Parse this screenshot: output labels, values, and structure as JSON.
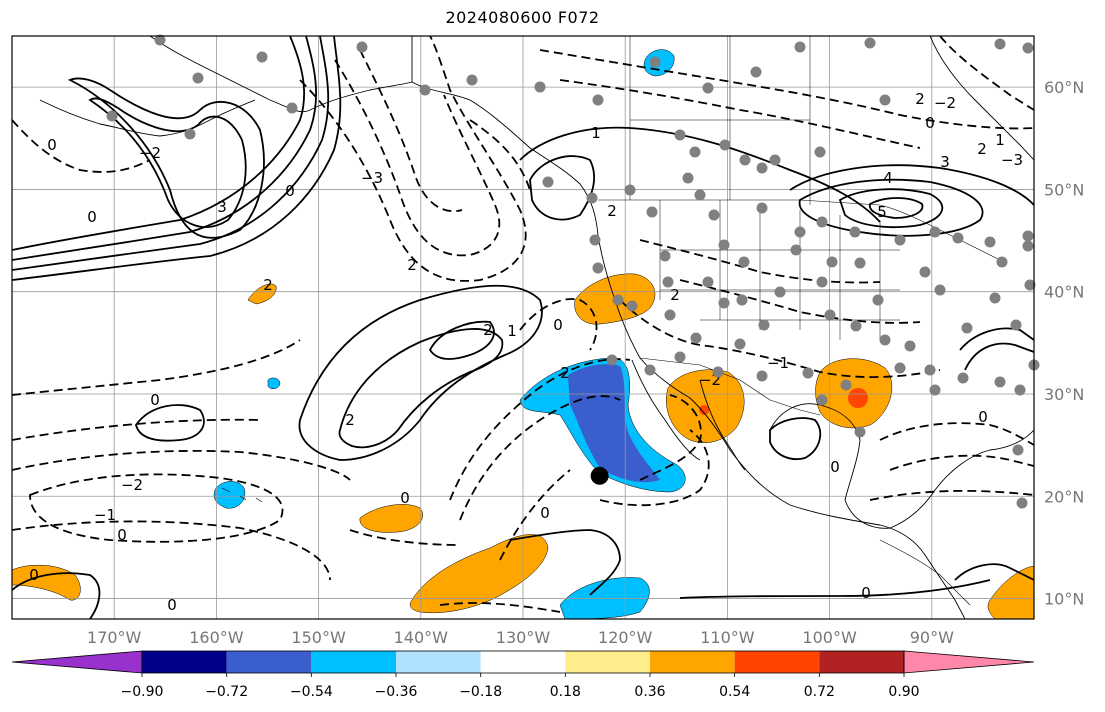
{
  "title": "2024080600 F072",
  "map": {
    "lon_range": [
      -180,
      -80
    ],
    "lat_range": [
      8,
      65
    ],
    "lon_ticks": [
      {
        "value": -170,
        "label": "170°W"
      },
      {
        "value": -160,
        "label": "160°W"
      },
      {
        "value": -150,
        "label": "150°W"
      },
      {
        "value": -140,
        "label": "140°W"
      },
      {
        "value": -130,
        "label": "130°W"
      },
      {
        "value": -120,
        "label": "120°W"
      },
      {
        "value": -110,
        "label": "110°W"
      },
      {
        "value": -100,
        "label": "100°W"
      },
      {
        "value": -90,
        "label": "90°W"
      }
    ],
    "lat_ticks": [
      {
        "value": 60,
        "label": "60°N"
      },
      {
        "value": 50,
        "label": "50°N"
      },
      {
        "value": 40,
        "label": "40°N"
      },
      {
        "value": 30,
        "label": "30°N"
      },
      {
        "value": 20,
        "label": "20°N"
      },
      {
        "value": 10,
        "label": "10°N"
      }
    ],
    "grid": true,
    "marker": {
      "lon": -122.5,
      "lat": 22
    }
  },
  "colorbar": {
    "levels": [
      "−0.90",
      "−0.72",
      "−0.54",
      "−0.36",
      "−0.18",
      "0.18",
      "0.36",
      "0.54",
      "0.72",
      "0.90"
    ],
    "colors": [
      "#9932cc",
      "#00008b",
      "#3a5fcd",
      "#00bfff",
      "#b0e2ff",
      "#ffffff",
      "#ffec8b",
      "#ffa500",
      "#ff4500",
      "#b22222",
      "#ff88aa"
    ]
  },
  "contour_labels": [
    "0",
    "1",
    "2",
    "3",
    "4",
    "5",
    "−1",
    "−2",
    "−3"
  ],
  "colors": {
    "frame": "#000000",
    "grid": "#999999",
    "station": "#808080"
  }
}
